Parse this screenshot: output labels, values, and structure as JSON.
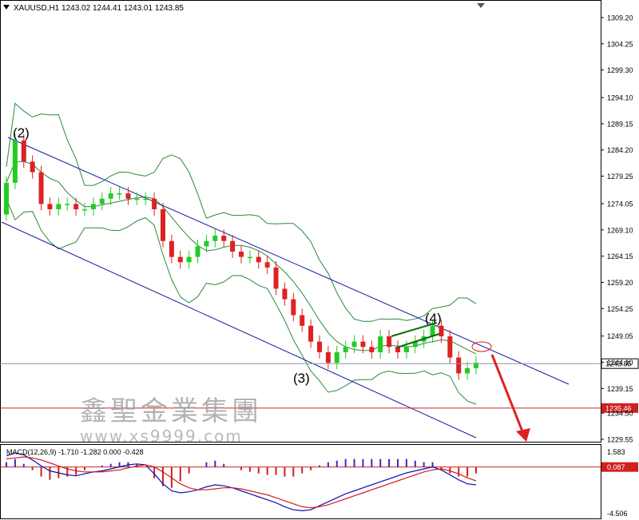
{
  "header": {
    "symbol_label": "XAUUSD,H1",
    "open": "1243.02",
    "high": "1244.41",
    "low": "1243.01",
    "close": "1243.85"
  },
  "macd_header": {
    "label": "MACD(12,26,9)",
    "values": "-1.710 -1.282 0.000 -0.428"
  },
  "watermark": {
    "brand_cn": "鑫聖金業集團",
    "url": "www.xs9999.com"
  },
  "wave_labels": [
    "(2)",
    "(3)",
    "(4)"
  ],
  "colors": {
    "bull_candle": "#22cc22",
    "bear_candle": "#dd2222",
    "channel": "#1a1aa0",
    "bollinger": "#2a8a3a",
    "macd_line": "#1010b0",
    "signal_line": "#d02020",
    "histogram": "#3030c0",
    "forecast_arrow": "#e02020"
  },
  "chart_data": [
    {
      "type": "candlestick",
      "symbol": "XAUUSD",
      "timeframe": "H1",
      "price_axis": {
        "ticks": [
          "1309.20",
          "1304.25",
          "1299.30",
          "1294.10",
          "1289.15",
          "1284.20",
          "1279.25",
          "1274.05",
          "1269.10",
          "1264.15",
          "1259.20",
          "1254.25",
          "1249.05",
          "1244.10",
          "1239.15",
          "1234.50",
          "1229.55"
        ],
        "range": [
          1229.55,
          1309.2
        ]
      },
      "current_price": "1243.85",
      "horizontal_level": "1235.46",
      "indicators": [
        "Bollinger Bands",
        "Descending price channel",
        "Elliott wave labels"
      ],
      "approx_closes": [
        1278,
        1286,
        1282,
        1280,
        1274,
        1273,
        1274,
        1274,
        1273,
        1273,
        1274,
        1275,
        1276,
        1276,
        1275,
        1275,
        1275,
        1273,
        1267,
        1264,
        1263,
        1264,
        1266,
        1267,
        1268,
        1267,
        1265,
        1264,
        1264,
        1263,
        1262,
        1258,
        1256,
        1253,
        1251,
        1248,
        1246,
        1244,
        1246,
        1247,
        1248,
        1247,
        1246,
        1249,
        1247,
        1246,
        1247,
        1248,
        1249,
        1251,
        1249,
        1245,
        1242,
        1243,
        1244
      ],
      "annotations": {
        "wave_2_price": 1289,
        "wave_3_price": 1243,
        "wave_4_price": 1252,
        "forecast": "downward arrow toward 1229.55 after upper channel test near 1247"
      }
    },
    {
      "type": "bar",
      "name": "MACD(12,26,9)",
      "axis_ticks": [
        "1.583",
        "0.087",
        "-4.506"
      ],
      "range": [
        -4.506,
        1.583
      ],
      "marked_value": "0.087",
      "series": [
        {
          "name": "MACD",
          "values": [
            1.2,
            1.5,
            1.3,
            0.8,
            0.2,
            -0.3,
            -0.5,
            -0.7,
            -0.8,
            -0.6,
            -0.4,
            -0.3,
            -0.1,
            0.1,
            0.3,
            0.4,
            0.3,
            -0.6,
            -1.6,
            -2.3,
            -2.5,
            -2.4,
            -2.2,
            -1.9,
            -1.7,
            -1.8,
            -2.0,
            -2.3,
            -2.6,
            -2.9,
            -3.2,
            -3.5,
            -3.9,
            -4.2,
            -4.3,
            -4.2,
            -3.8,
            -3.4,
            -3.0,
            -2.6,
            -2.3,
            -2.0,
            -1.7,
            -1.4,
            -1.1,
            -0.8,
            -0.5,
            -0.3,
            -0.1,
            0.1,
            -0.2,
            -0.7,
            -1.2,
            -1.6,
            -1.7
          ]
        },
        {
          "name": "Signal",
          "values": [
            0.9,
            1.0,
            1.1,
            1.0,
            0.8,
            0.5,
            0.2,
            -0.1,
            -0.3,
            -0.4,
            -0.4,
            -0.4,
            -0.3,
            -0.2,
            0.0,
            0.2,
            0.3,
            0.1,
            -0.4,
            -1.0,
            -1.6,
            -2.0,
            -2.2,
            -2.2,
            -2.1,
            -2.0,
            -2.0,
            -2.1,
            -2.3,
            -2.5,
            -2.7,
            -3.0,
            -3.3,
            -3.6,
            -3.9,
            -4.0,
            -3.9,
            -3.7,
            -3.4,
            -3.1,
            -2.8,
            -2.5,
            -2.2,
            -1.9,
            -1.6,
            -1.3,
            -1.0,
            -0.7,
            -0.4,
            -0.2,
            -0.1,
            -0.3,
            -0.6,
            -1.0,
            -1.3
          ]
        }
      ]
    }
  ]
}
